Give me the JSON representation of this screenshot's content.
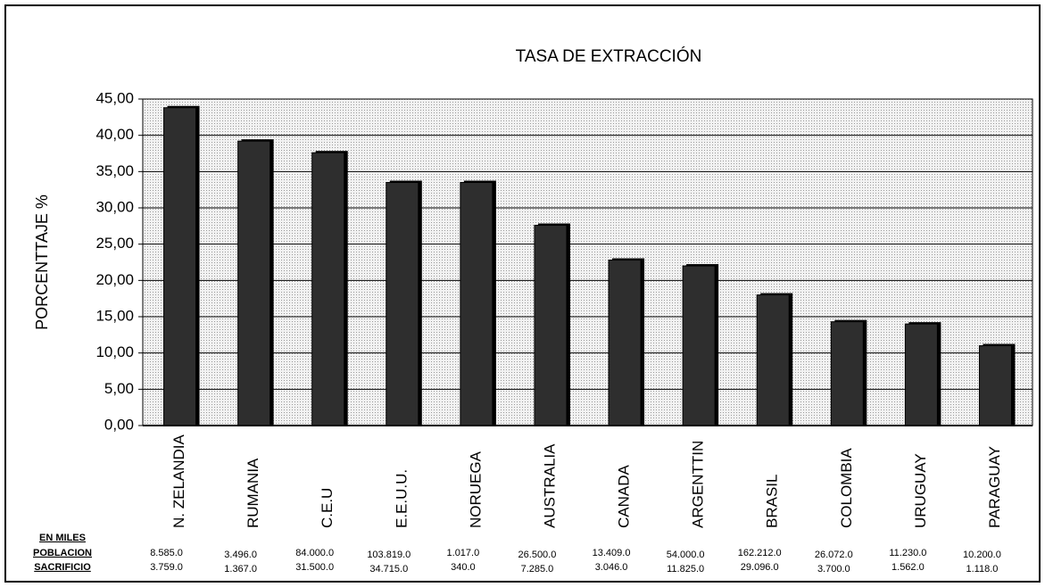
{
  "chart_data": {
    "type": "bar",
    "title": "TASA DE EXTRACCIÓN",
    "y_label": "PORCENTTAJE %",
    "categories": [
      "N. ZELANDIA",
      "RUMANIA",
      "C.E.U",
      "E.E.U.U.",
      "NORUEGA",
      "AUSTRALIA",
      "CANADA",
      "ARGENTTIN",
      "BRASIL",
      "COLOMBIA",
      "URUGUAY",
      "PARAGUAY"
    ],
    "values": [
      43.8,
      39.2,
      37.6,
      33.5,
      33.5,
      27.6,
      22.8,
      22.0,
      18.0,
      14.3,
      14.0,
      11.0
    ],
    "color": "#2e2e2e",
    "ylim": [
      0,
      45
    ],
    "yticks": [
      {
        "value": 0,
        "label": "0,00"
      },
      {
        "value": 5,
        "label": "5,00"
      },
      {
        "value": 10,
        "label": "10,00"
      },
      {
        "value": 15,
        "label": "15,00"
      },
      {
        "value": 20,
        "label": "20,00"
      },
      {
        "value": 25,
        "label": "25,00"
      },
      {
        "value": 30,
        "label": "30,00"
      },
      {
        "value": 35,
        "label": "35,00"
      },
      {
        "value": 40,
        "label": "40,00"
      },
      {
        "value": 45,
        "label": "45,00"
      }
    ],
    "grid": true,
    "table": {
      "header": "EN MILES",
      "rows": [
        {
          "label": "POBLACION",
          "values": [
            "8.585.0",
            "3.496.0",
            "84.000.0",
            "103.819.0",
            "1.017.0",
            "26.500.0",
            "13.409.0",
            "54.000.0",
            "162.212.0",
            "26.072.0",
            "11.230.0",
            "10.200.0"
          ]
        },
        {
          "label": "SACRIFICIO",
          "values": [
            "3.759.0",
            "1.367.0",
            "31.500.0",
            "34.715.0",
            "340.0",
            "7.285.0",
            "3.046.0",
            "11.825.0",
            "29.096.0",
            "3.700.0",
            "1.562.0",
            "1.118.0"
          ]
        }
      ]
    }
  }
}
